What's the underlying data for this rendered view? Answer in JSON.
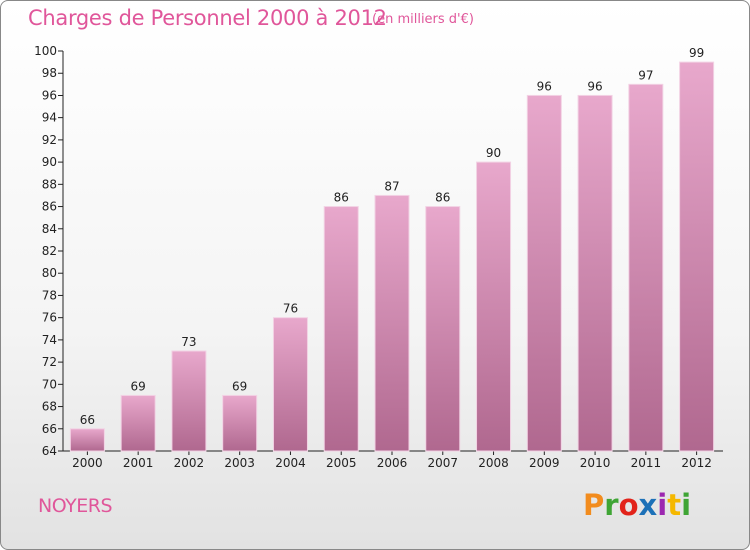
{
  "header": {
    "title": "Charges de Personnel 2000 à 2012",
    "subtitle": "(en milliers d'€)"
  },
  "footer": {
    "city": "NOYERS",
    "brand": "Proxiti"
  },
  "colors": {
    "title": "#e0569a",
    "bar_top": "#e8a8cc",
    "bar_bottom": "#b0688f",
    "axis": "#222222",
    "brand_letters": [
      "#f28c1e",
      "#3fa535",
      "#e2231a",
      "#1d71b8",
      "#9c27b0",
      "#f5b800",
      "#3fa535"
    ]
  },
  "chart_data": {
    "type": "bar",
    "title": "Charges de Personnel 2000 à 2012",
    "subtitle": "(en milliers d'€)",
    "xlabel": "",
    "ylabel": "",
    "categories": [
      "2000",
      "2001",
      "2002",
      "2003",
      "2004",
      "2005",
      "2006",
      "2007",
      "2008",
      "2009",
      "2010",
      "2011",
      "2012"
    ],
    "values": [
      66,
      69,
      73,
      69,
      76,
      86,
      87,
      86,
      90,
      96,
      96,
      97,
      99
    ],
    "ylim": [
      64,
      100
    ],
    "yticks": [
      64,
      66,
      68,
      70,
      72,
      74,
      76,
      78,
      80,
      82,
      84,
      86,
      88,
      90,
      92,
      94,
      96,
      98,
      100
    ],
    "grid": false,
    "legend": "none"
  }
}
